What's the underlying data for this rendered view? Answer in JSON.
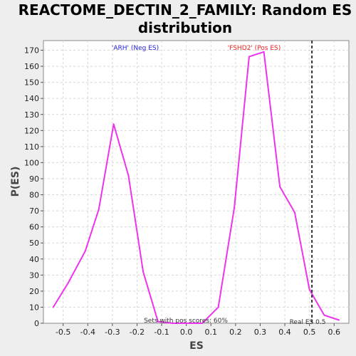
{
  "chart_data": {
    "type": "line",
    "title_line1": "REACTOME_DECTIN_2_FAMILY: Random ES",
    "title_line2": "distribution",
    "xlabel": "ES",
    "ylabel": "P(ES)",
    "xlim": [
      -0.58,
      0.66
    ],
    "ylim": [
      0,
      176
    ],
    "x_ticks": [
      -0.5,
      -0.4,
      -0.3,
      -0.2,
      -0.1,
      0.0,
      0.1,
      0.2,
      0.3,
      0.4,
      0.5,
      0.6
    ],
    "x_tick_labels": [
      "-0.5",
      "-0.4",
      "-0.3",
      "-0.2",
      "-0.1",
      "0.0",
      "0.1",
      "0.2",
      "0.3",
      "0.4",
      "0.5",
      "0.6"
    ],
    "y_ticks": [
      0,
      10,
      20,
      30,
      40,
      50,
      60,
      70,
      80,
      90,
      100,
      110,
      120,
      130,
      140,
      150,
      160,
      170
    ],
    "y_tick_labels": [
      "0",
      "10",
      "20",
      "30",
      "40",
      "50",
      "60",
      "70",
      "80",
      "90",
      "100",
      "110",
      "120",
      "130",
      "140",
      "150",
      "160",
      "170"
    ],
    "grid": true,
    "series": [
      {
        "color": "#ee33ee",
        "x": [
          -0.54,
          -0.48,
          -0.41,
          -0.355,
          -0.295,
          -0.235,
          -0.175,
          -0.115,
          -0.055,
          0.005,
          0.065,
          0.13,
          0.195,
          0.255,
          0.315,
          0.38,
          0.44,
          0.5,
          0.56,
          0.62
        ],
        "y": [
          10,
          25,
          45,
          71,
          124,
          92,
          32,
          1,
          0,
          0,
          0,
          10,
          72,
          166,
          169,
          85,
          69,
          21,
          5,
          2
        ]
      }
    ],
    "real_es": 0.51,
    "real_es_label": "Real ES 0.5",
    "neg_label": "'ARH' (Neg ES)",
    "neg_color": "#2222dd",
    "pos_label": "'FSHD2' (Pos ES)",
    "pos_color": "#ee2222",
    "pos_scores_note": "Sets with pos scores: 60%"
  }
}
